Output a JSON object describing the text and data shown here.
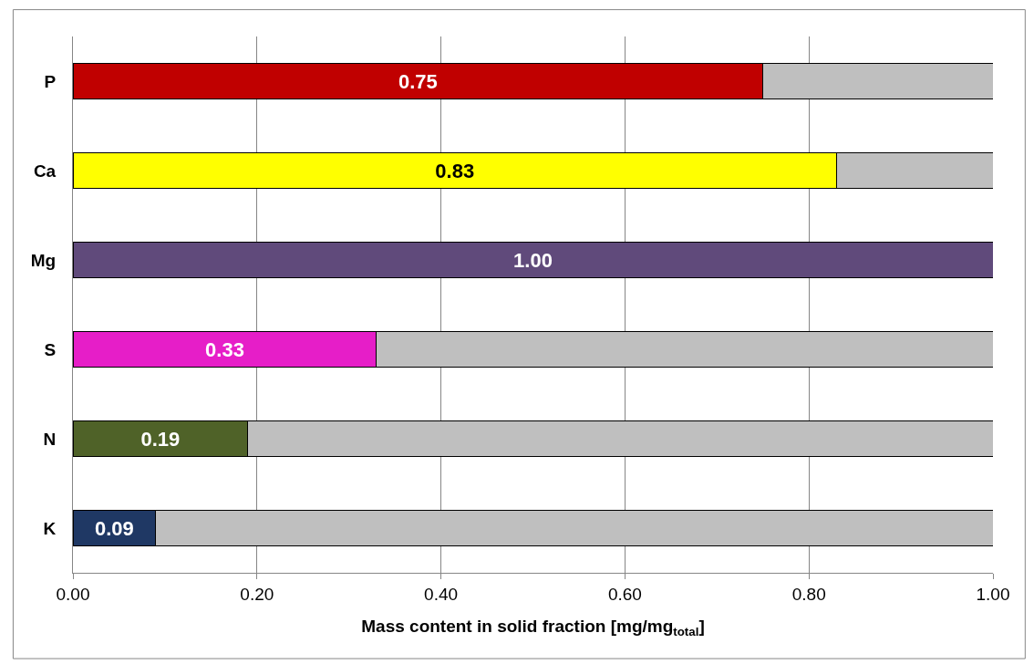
{
  "chart_data": {
    "type": "bar",
    "orientation": "horizontal",
    "stacked": true,
    "categories": [
      "P",
      "Ca",
      "Mg",
      "S",
      "N",
      "K"
    ],
    "series": [
      {
        "colors": [
          "#c00000",
          "#ffff00",
          "#604a7b",
          "#e61ec8",
          "#4f6228",
          "#1f3864"
        ],
        "values": [
          0.75,
          0.83,
          1.0,
          0.33,
          0.19,
          0.09
        ],
        "value_labels": [
          "0.75",
          "0.83",
          "1.00",
          "0.33",
          "0.19",
          "0.09"
        ]
      },
      {
        "color": "#bfbfbf",
        "values": [
          0.25,
          0.17,
          null,
          0.67,
          0.81,
          0.91
        ]
      }
    ],
    "xlabel": "Mass content in solid fraction [mg/mg$_{total}$]",
    "xlim": [
      0,
      1
    ],
    "xticks": [
      {
        "value": 0,
        "label": "0.00"
      },
      {
        "value": 0.2,
        "label": "0.20"
      },
      {
        "value": 0.4,
        "label": "0.40"
      },
      {
        "value": 0.6,
        "label": "0.60"
      },
      {
        "value": 0.8,
        "label": "0.80"
      },
      {
        "value": 1,
        "label": "1.00"
      }
    ],
    "grid": "x"
  }
}
